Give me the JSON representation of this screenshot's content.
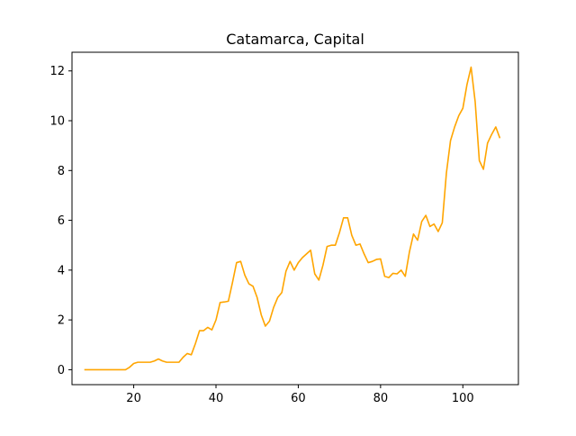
{
  "chart_data": {
    "type": "line",
    "title": "Catamarca, Capital",
    "xlabel": "",
    "ylabel": "",
    "xlim": [
      5.0,
      113.5
    ],
    "ylim": [
      -0.6,
      12.75
    ],
    "grid": false,
    "x_ticks": [
      20,
      40,
      60,
      80,
      100
    ],
    "y_ticks": [
      0,
      2,
      4,
      6,
      8,
      10,
      12
    ],
    "series": [
      {
        "color": "#FFA500",
        "x": [
          8,
          9,
          10,
          11,
          12,
          13,
          14,
          15,
          16,
          17,
          18,
          19,
          20,
          21,
          22,
          23,
          24,
          25,
          26,
          27,
          28,
          29,
          30,
          31,
          32,
          33,
          34,
          35,
          36,
          37,
          38,
          39,
          40,
          41,
          42,
          43,
          44,
          45,
          46,
          47,
          48,
          49,
          50,
          51,
          52,
          53,
          54,
          55,
          56,
          57,
          58,
          59,
          60,
          61,
          62,
          63,
          64,
          65,
          66,
          67,
          68,
          69,
          70,
          71,
          72,
          73,
          74,
          75,
          76,
          77,
          78,
          79,
          80,
          81,
          82,
          83,
          84,
          85,
          86,
          87,
          88,
          89,
          90,
          91,
          92,
          93,
          94,
          95,
          96,
          97,
          98,
          99,
          100,
          101,
          102,
          103,
          104,
          105,
          106,
          107,
          108,
          109
        ],
        "y": [
          0,
          0,
          0,
          0,
          0,
          0,
          0,
          0,
          0,
          0,
          0,
          0.1,
          0.25,
          0.3,
          0.3,
          0.3,
          0.3,
          0.35,
          0.43,
          0.35,
          0.3,
          0.3,
          0.3,
          0.3,
          0.5,
          0.65,
          0.6,
          1.05,
          1.57,
          1.57,
          1.7,
          1.6,
          2.0,
          2.7,
          2.72,
          2.75,
          3.5,
          4.3,
          4.35,
          3.8,
          3.45,
          3.35,
          2.9,
          2.2,
          1.75,
          1.95,
          2.5,
          2.9,
          3.1,
          3.95,
          4.35,
          4.0,
          4.3,
          4.5,
          4.65,
          4.8,
          3.85,
          3.6,
          4.2,
          4.95,
          5.0,
          5.0,
          5.5,
          6.1,
          6.1,
          5.4,
          5.0,
          5.05,
          4.65,
          4.3,
          4.35,
          4.43,
          4.45,
          3.75,
          3.7,
          3.87,
          3.85,
          4.0,
          3.75,
          4.72,
          5.45,
          5.2,
          5.95,
          6.2,
          5.75,
          5.85,
          5.55,
          5.9,
          7.9,
          9.2,
          9.75,
          10.2,
          10.5,
          11.45,
          12.15,
          10.75,
          8.4,
          8.05,
          9.1,
          9.45,
          9.75,
          9.3
        ]
      }
    ]
  }
}
